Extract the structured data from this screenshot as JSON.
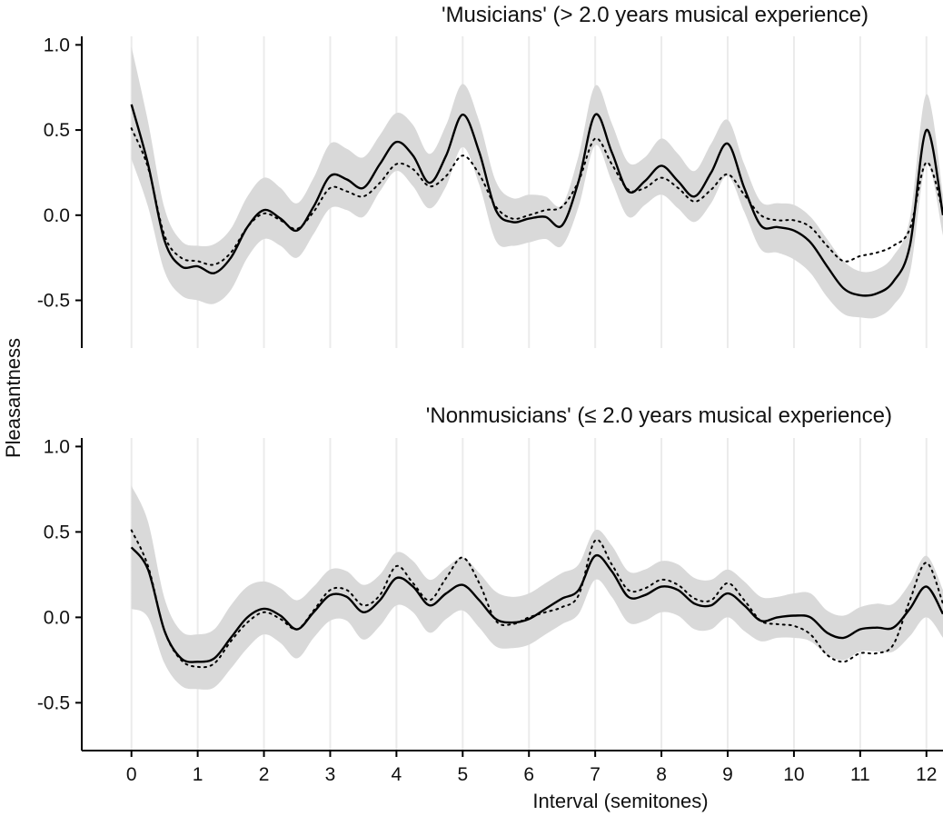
{
  "chart_data": [
    {
      "type": "line",
      "title": "'Musicians' (> 2.0 years musical experience)",
      "xlabel": "Interval (semitones)",
      "ylabel": "Pleasantness",
      "xlim": [
        -0.75,
        12.25
      ],
      "ylim": [
        -0.78,
        1.05
      ],
      "yticks": [
        -0.5,
        0.0,
        0.5,
        1.0
      ],
      "ytick_labels": [
        "-0.5",
        "0.0",
        "0.5",
        "1.0"
      ],
      "xticks": [
        0,
        1,
        2,
        3,
        4,
        5,
        6,
        7,
        8,
        9,
        10,
        11,
        12
      ],
      "grid": "vertical",
      "colors": {
        "solid": "#000000",
        "dotted": "#000000",
        "band": "#d9d9d9",
        "grid": "#ebebeb"
      },
      "series": [
        {
          "style": "solid",
          "x": [
            0,
            0.25,
            0.5,
            0.75,
            1,
            1.25,
            1.5,
            1.75,
            2,
            2.25,
            2.5,
            2.75,
            3,
            3.25,
            3.5,
            3.75,
            4,
            4.25,
            4.5,
            4.75,
            5,
            5.25,
            5.5,
            5.75,
            6,
            6.25,
            6.5,
            6.75,
            7,
            7.25,
            7.5,
            7.75,
            8,
            8.25,
            8.5,
            8.75,
            9,
            9.25,
            9.5,
            9.75,
            10,
            10.25,
            10.5,
            10.75,
            11,
            11.25,
            11.5,
            11.75,
            12,
            12.25
          ],
          "y": [
            0.65,
            0.3,
            -0.15,
            -0.3,
            -0.3,
            -0.34,
            -0.25,
            -0.07,
            0.03,
            -0.02,
            -0.09,
            0.05,
            0.23,
            0.21,
            0.16,
            0.3,
            0.43,
            0.35,
            0.19,
            0.35,
            0.59,
            0.37,
            0.03,
            -0.04,
            -0.02,
            -0.01,
            -0.06,
            0.2,
            0.59,
            0.37,
            0.14,
            0.2,
            0.29,
            0.2,
            0.11,
            0.25,
            0.42,
            0.16,
            -0.06,
            -0.07,
            -0.09,
            -0.16,
            -0.3,
            -0.43,
            -0.47,
            -0.46,
            -0.39,
            -0.18,
            0.5,
            0.0
          ]
        },
        {
          "style": "dotted",
          "x": [
            0,
            0.25,
            0.5,
            0.75,
            1,
            1.25,
            1.5,
            1.75,
            2,
            2.25,
            2.5,
            2.75,
            3,
            3.25,
            3.5,
            3.75,
            4,
            4.25,
            4.5,
            4.75,
            5,
            5.25,
            5.5,
            5.75,
            6,
            6.25,
            6.5,
            6.75,
            7,
            7.25,
            7.5,
            7.75,
            8,
            8.25,
            8.5,
            8.75,
            9,
            9.25,
            9.5,
            9.75,
            10,
            10.25,
            10.5,
            10.75,
            11,
            11.25,
            11.5,
            11.75,
            12,
            12.25
          ],
          "y": [
            0.51,
            0.28,
            -0.12,
            -0.25,
            -0.27,
            -0.29,
            -0.22,
            -0.07,
            0.01,
            -0.03,
            -0.08,
            0.02,
            0.16,
            0.14,
            0.11,
            0.19,
            0.3,
            0.27,
            0.17,
            0.23,
            0.35,
            0.24,
            0.05,
            -0.02,
            0.0,
            0.03,
            0.05,
            0.2,
            0.45,
            0.3,
            0.15,
            0.16,
            0.22,
            0.16,
            0.08,
            0.15,
            0.24,
            0.12,
            0.0,
            -0.03,
            -0.03,
            -0.07,
            -0.18,
            -0.27,
            -0.24,
            -0.22,
            -0.18,
            -0.08,
            0.31,
            0.02
          ]
        }
      ],
      "band": {
        "x": [
          0,
          0.25,
          0.5,
          0.75,
          1,
          1.25,
          1.5,
          1.75,
          2,
          2.25,
          2.5,
          2.75,
          3,
          3.25,
          3.5,
          3.75,
          4,
          4.25,
          4.5,
          4.75,
          5,
          5.25,
          5.5,
          5.75,
          6,
          6.25,
          6.5,
          6.75,
          7,
          7.25,
          7.5,
          7.75,
          8,
          8.25,
          8.5,
          8.75,
          9,
          9.25,
          9.5,
          9.75,
          10,
          10.25,
          10.5,
          10.75,
          11,
          11.25,
          11.5,
          11.75,
          12,
          12.25
        ],
        "lower": [
          0.33,
          0.05,
          -0.33,
          -0.47,
          -0.5,
          -0.52,
          -0.44,
          -0.25,
          -0.14,
          -0.18,
          -0.25,
          -0.11,
          0.04,
          0.03,
          -0.01,
          0.14,
          0.26,
          0.17,
          0.04,
          0.17,
          0.4,
          0.18,
          -0.15,
          -0.18,
          -0.16,
          -0.14,
          -0.18,
          0.05,
          0.41,
          0.2,
          -0.01,
          0.06,
          0.12,
          0.04,
          -0.04,
          0.07,
          0.23,
          0.02,
          -0.2,
          -0.22,
          -0.26,
          -0.34,
          -0.48,
          -0.58,
          -0.6,
          -0.6,
          -0.53,
          -0.34,
          0.3,
          -0.12
        ],
        "upper": [
          0.99,
          0.55,
          0.04,
          -0.15,
          -0.18,
          -0.17,
          -0.08,
          0.11,
          0.22,
          0.16,
          0.07,
          0.22,
          0.42,
          0.39,
          0.34,
          0.47,
          0.6,
          0.53,
          0.36,
          0.53,
          0.77,
          0.55,
          0.2,
          0.1,
          0.12,
          0.11,
          0.06,
          0.35,
          0.76,
          0.54,
          0.31,
          0.34,
          0.45,
          0.36,
          0.26,
          0.42,
          0.56,
          0.3,
          0.08,
          0.07,
          0.06,
          -0.01,
          -0.14,
          -0.27,
          -0.33,
          -0.32,
          -0.24,
          -0.02,
          0.71,
          0.12
        ]
      }
    },
    {
      "type": "line",
      "title": "'Nonmusicians' (≤ 2.0 years musical experience)",
      "xlabel": "Interval (semitones)",
      "ylabel": "Pleasantness",
      "xlim": [
        -0.75,
        12.25
      ],
      "ylim": [
        -0.78,
        1.05
      ],
      "yticks": [
        -0.5,
        0.0,
        0.5,
        1.0
      ],
      "ytick_labels": [
        "-0.5",
        "0.0",
        "0.5",
        "1.0"
      ],
      "xticks": [
        0,
        1,
        2,
        3,
        4,
        5,
        6,
        7,
        8,
        9,
        10,
        11,
        12
      ],
      "xtick_labels": [
        "0",
        "1",
        "2",
        "3",
        "4",
        "5",
        "6",
        "7",
        "8",
        "9",
        "10",
        "11",
        "12"
      ],
      "grid": "vertical",
      "colors": {
        "solid": "#000000",
        "dotted": "#000000",
        "band": "#d9d9d9",
        "grid": "#ebebeb"
      },
      "series": [
        {
          "style": "solid",
          "x": [
            0,
            0.25,
            0.5,
            0.75,
            1,
            1.25,
            1.5,
            1.75,
            2,
            2.25,
            2.5,
            2.75,
            3,
            3.25,
            3.5,
            3.75,
            4,
            4.25,
            4.5,
            4.75,
            5,
            5.25,
            5.5,
            5.75,
            6,
            6.25,
            6.5,
            6.75,
            7,
            7.25,
            7.5,
            7.75,
            8,
            8.25,
            8.5,
            8.75,
            9,
            9.25,
            9.5,
            9.75,
            10,
            10.25,
            10.5,
            10.75,
            11,
            11.25,
            11.5,
            11.75,
            12,
            12.25
          ],
          "y": [
            0.41,
            0.28,
            -0.08,
            -0.24,
            -0.26,
            -0.24,
            -0.12,
            0.0,
            0.05,
            0.01,
            -0.07,
            0.03,
            0.13,
            0.12,
            0.03,
            0.1,
            0.23,
            0.18,
            0.07,
            0.14,
            0.19,
            0.1,
            -0.01,
            -0.03,
            -0.01,
            0.05,
            0.11,
            0.16,
            0.36,
            0.27,
            0.12,
            0.13,
            0.18,
            0.16,
            0.08,
            0.07,
            0.14,
            0.07,
            -0.02,
            0.0,
            0.01,
            0.0,
            -0.09,
            -0.12,
            -0.07,
            -0.06,
            -0.06,
            0.05,
            0.18,
            0.02
          ]
        },
        {
          "style": "dotted",
          "x": [
            0,
            0.25,
            0.5,
            0.75,
            1,
            1.25,
            1.5,
            1.75,
            2,
            2.25,
            2.5,
            2.75,
            3,
            3.25,
            3.5,
            3.75,
            4,
            4.25,
            4.5,
            4.75,
            5,
            5.25,
            5.5,
            5.75,
            6,
            6.25,
            6.5,
            6.75,
            7,
            7.25,
            7.5,
            7.75,
            8,
            8.25,
            8.5,
            8.75,
            9,
            9.25,
            9.5,
            9.75,
            10,
            10.25,
            10.5,
            10.75,
            11,
            11.25,
            11.5,
            11.75,
            12,
            12.25
          ],
          "y": [
            0.51,
            0.3,
            -0.08,
            -0.25,
            -0.29,
            -0.27,
            -0.14,
            -0.03,
            0.03,
            -0.01,
            -0.07,
            0.04,
            0.16,
            0.16,
            0.07,
            0.13,
            0.3,
            0.2,
            0.1,
            0.23,
            0.35,
            0.2,
            -0.02,
            -0.04,
            0.0,
            0.03,
            0.06,
            0.13,
            0.45,
            0.31,
            0.16,
            0.17,
            0.22,
            0.19,
            0.11,
            0.1,
            0.2,
            0.1,
            -0.02,
            -0.04,
            -0.05,
            -0.1,
            -0.22,
            -0.26,
            -0.21,
            -0.21,
            -0.16,
            0.1,
            0.32,
            0.08
          ]
        }
      ],
      "band": {
        "x": [
          0,
          0.25,
          0.5,
          0.75,
          1,
          1.25,
          1.5,
          1.75,
          2,
          2.25,
          2.5,
          2.75,
          3,
          3.25,
          3.5,
          3.75,
          4,
          4.25,
          4.5,
          4.75,
          5,
          5.25,
          5.5,
          5.75,
          6,
          6.25,
          6.5,
          6.75,
          7,
          7.25,
          7.5,
          7.75,
          8,
          8.25,
          8.5,
          8.75,
          9,
          9.25,
          9.5,
          9.75,
          10,
          10.25,
          10.5,
          10.75,
          11,
          11.25,
          11.5,
          11.75,
          12,
          12.25
        ],
        "lower": [
          0.05,
          0.0,
          -0.27,
          -0.4,
          -0.42,
          -0.41,
          -0.3,
          -0.18,
          -0.1,
          -0.15,
          -0.24,
          -0.12,
          -0.02,
          -0.02,
          -0.13,
          -0.05,
          0.07,
          0.03,
          -0.09,
          -0.01,
          0.04,
          -0.06,
          -0.17,
          -0.18,
          -0.16,
          -0.1,
          -0.04,
          0.02,
          0.22,
          0.12,
          -0.03,
          -0.02,
          0.03,
          0.01,
          -0.07,
          -0.07,
          0.0,
          -0.08,
          -0.14,
          -0.12,
          -0.12,
          -0.14,
          -0.22,
          -0.25,
          -0.2,
          -0.2,
          -0.2,
          -0.11,
          0.0,
          -0.12
        ],
        "upper": [
          0.77,
          0.56,
          0.11,
          -0.08,
          -0.1,
          -0.07,
          0.07,
          0.18,
          0.21,
          0.17,
          0.1,
          0.18,
          0.28,
          0.27,
          0.19,
          0.25,
          0.38,
          0.33,
          0.22,
          0.29,
          0.35,
          0.26,
          0.15,
          0.12,
          0.14,
          0.2,
          0.26,
          0.31,
          0.51,
          0.42,
          0.27,
          0.28,
          0.33,
          0.31,
          0.23,
          0.22,
          0.28,
          0.21,
          0.12,
          0.12,
          0.14,
          0.14,
          0.04,
          0.01,
          0.06,
          0.08,
          0.08,
          0.2,
          0.36,
          0.16
        ]
      }
    }
  ]
}
